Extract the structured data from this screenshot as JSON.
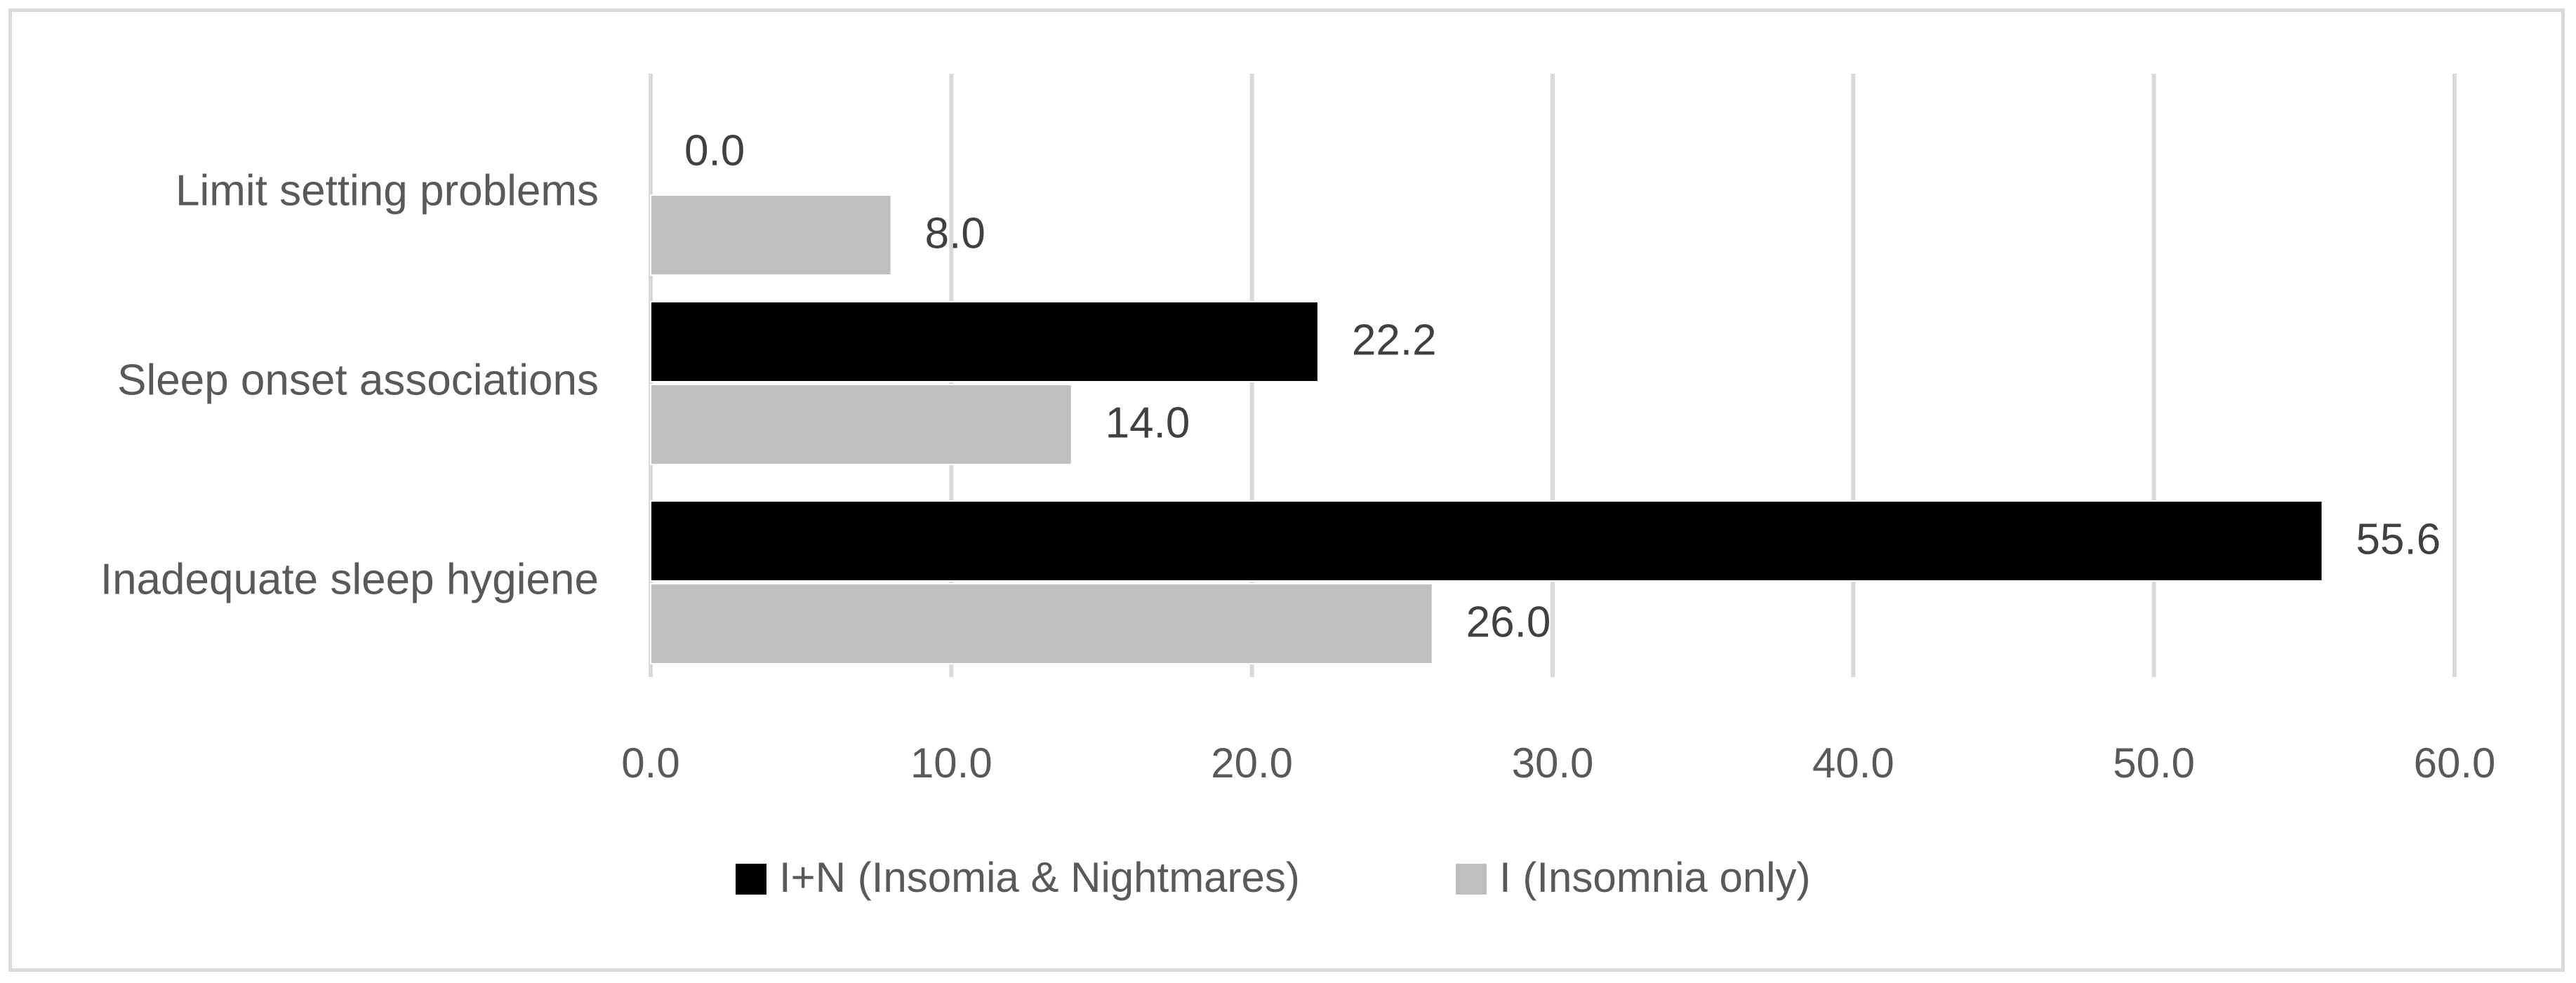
{
  "chart_data": {
    "type": "bar",
    "orientation": "horizontal",
    "categories": [
      "Limit setting problems",
      "Sleep onset associations",
      "Inadequate sleep hygiene"
    ],
    "series": [
      {
        "name": "I+N (Insomia & Nightmares)",
        "values": [
          0.0,
          22.2,
          55.6
        ],
        "color": "#000000"
      },
      {
        "name": "I (Insomnia only)",
        "values": [
          8.0,
          14.0,
          26.0
        ],
        "color": "#bfbfbf"
      }
    ],
    "data_labels": [
      [
        "0.0",
        "22.2",
        "55.6"
      ],
      [
        "8.0",
        "14.0",
        "26.0"
      ]
    ],
    "x_ticks": [
      "0.0",
      "10.0",
      "20.0",
      "30.0",
      "40.0",
      "50.0",
      "60.0"
    ],
    "xlim": [
      0,
      60
    ],
    "grid": true,
    "legend_position": "bottom",
    "gridline_color": "#d9d9d9",
    "title": "",
    "xlabel": "",
    "ylabel": ""
  }
}
